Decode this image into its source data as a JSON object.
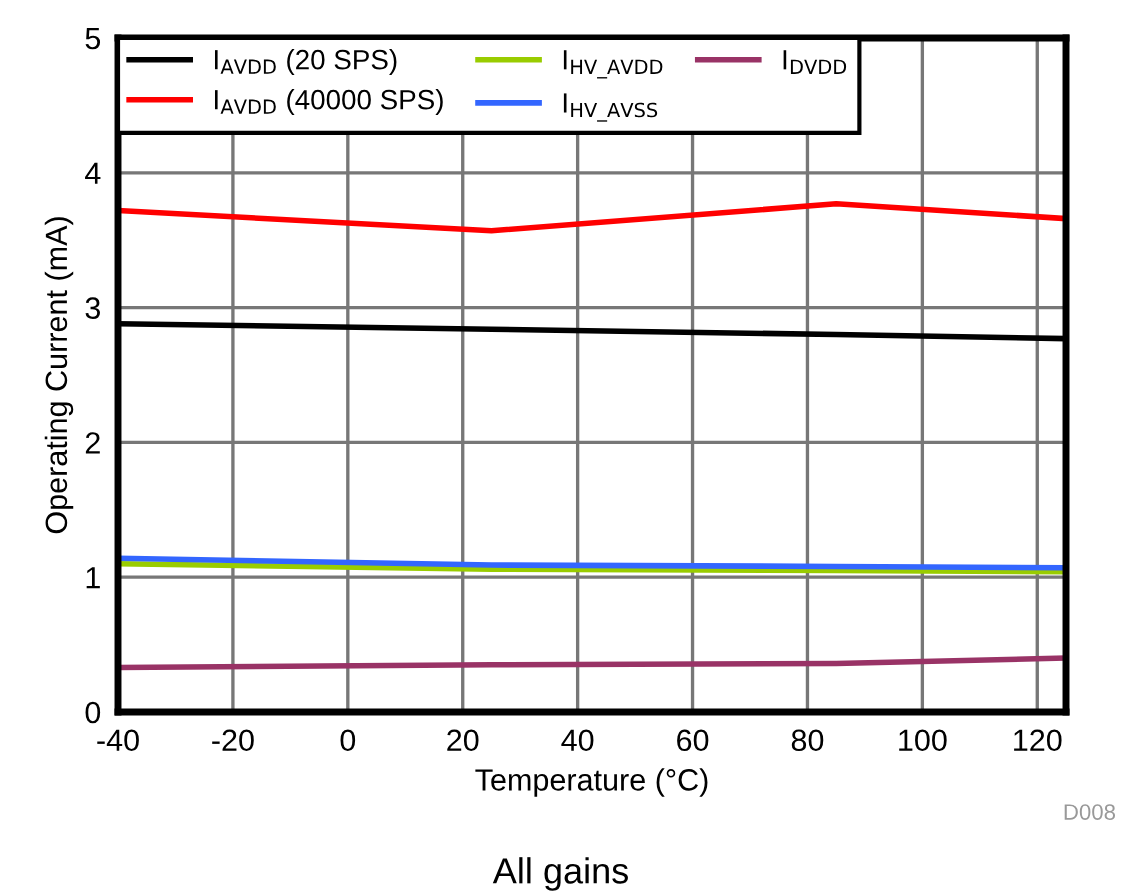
{
  "chart_data": {
    "type": "line",
    "xlabel": "Temperature (°C)",
    "ylabel": "Operating Current (mA)",
    "x": [
      -40,
      25,
      85,
      125
    ],
    "series": [
      {
        "name": "I$_{AVDD}$ (20 SPS)",
        "color": "#000000",
        "values": [
          2.88,
          2.84,
          2.8,
          2.77
        ]
      },
      {
        "name": "I$_{AVDD}$ (40000 SPS)",
        "color": "#ff0000",
        "values": [
          3.72,
          3.57,
          3.77,
          3.66
        ]
      },
      {
        "name": "I$_{HV_AVDD}$",
        "color": "#99cc00",
        "values": [
          1.1,
          1.06,
          1.05,
          1.04
        ]
      },
      {
        "name": "I$_{HV_AVSS}$",
        "color": "#3366ff",
        "values": [
          1.14,
          1.09,
          1.08,
          1.07
        ]
      },
      {
        "name": "I$_{DVDD}$",
        "color": "#993366",
        "values": [
          0.33,
          0.35,
          0.36,
          0.4
        ]
      }
    ],
    "xlim": [
      -40,
      125
    ],
    "ylim": [
      0,
      5
    ],
    "xticks": [
      {
        "value": -40,
        "label": "-40"
      },
      {
        "value": -20,
        "label": "-20"
      },
      0,
      20,
      40,
      60,
      80,
      100,
      120
    ],
    "yticks": [
      0,
      1,
      2,
      3,
      4,
      5
    ],
    "grid": true,
    "legend": "top",
    "marker": "none",
    "line_style": "solid",
    "annotations": [
      "D008",
      "All gains"
    ]
  }
}
